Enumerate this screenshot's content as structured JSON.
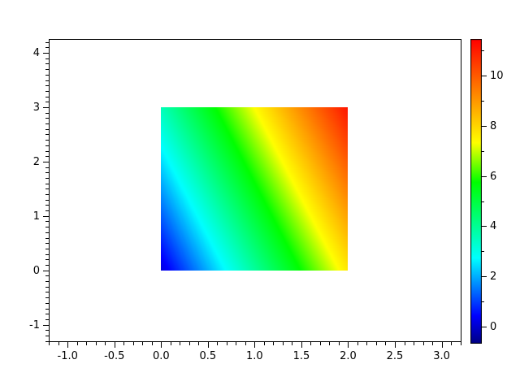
{
  "figure": {
    "background": "#ffffff",
    "frame_color": "#000000",
    "tick_color": "#000000",
    "label_color": "#000000"
  },
  "chart_data": {
    "type": "heatmap",
    "title": "",
    "xlabel": "",
    "ylabel": "",
    "x_range": [
      -1.2,
      3.21
    ],
    "y_range": [
      -1.32,
      4.26
    ],
    "grid": false,
    "legend": false,
    "x_ticks": {
      "values": [
        -1.0,
        -0.5,
        0.0,
        0.5,
        1.0,
        1.5,
        2.0,
        2.5,
        3.0
      ],
      "labels": [
        "-1.0",
        "-0.5",
        "0.0",
        "0.5",
        "1.0",
        "1.5",
        "2.0",
        "2.5",
        "3.0"
      ],
      "minor_step": 0.1
    },
    "y_ticks": {
      "values": [
        -1,
        0,
        1,
        2,
        3,
        4
      ],
      "labels": [
        "-1",
        "0",
        "1",
        "2",
        "3",
        "4"
      ],
      "minor_step": 0.1
    },
    "image": {
      "x_extent": [
        0,
        2
      ],
      "y_extent": [
        0,
        3
      ],
      "field": "z(x,y) = 0.1 + 3.8*x + 1.15*y",
      "offset": 0.1,
      "coef_x": 3.8,
      "coef_y": 1.15
    },
    "colorbar": {
      "vmin": -0.68,
      "vmax": 11.46,
      "tick_values": [
        0,
        2,
        4,
        6,
        8,
        10
      ],
      "tick_labels": [
        "0",
        "2",
        "4",
        "6",
        "8",
        "10"
      ],
      "minor_tick_values": [
        1,
        3,
        5,
        7,
        9,
        11
      ]
    },
    "colormap": {
      "name": "jet-rainbow",
      "stops": [
        [
          0.0,
          [
            0,
            0,
            132
          ]
        ],
        [
          0.09,
          [
            0,
            0,
            255
          ]
        ],
        [
          0.28,
          [
            0,
            255,
            255
          ]
        ],
        [
          0.53,
          [
            0,
            255,
            0
          ]
        ],
        [
          0.66,
          [
            255,
            255,
            0
          ]
        ],
        [
          1.0,
          [
            255,
            0,
            0
          ]
        ]
      ]
    }
  }
}
